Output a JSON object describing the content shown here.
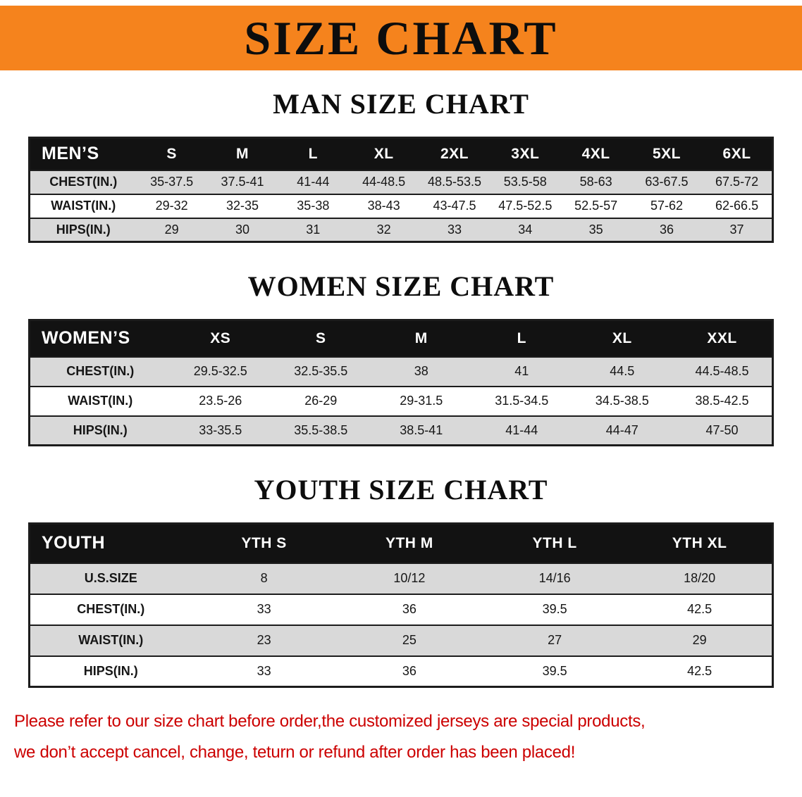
{
  "colors": {
    "banner_bg": "#f5831d",
    "table_header_bg": "#121212",
    "table_header_text": "#ffffff",
    "row_shade": "#d9d9d9",
    "row_plain": "#ffffff",
    "border": "#1c1c1c",
    "heading_text": "#0d0d0d",
    "notice_text": "#cc0000"
  },
  "banner": {
    "title": "SIZE CHART"
  },
  "sections": [
    {
      "id": "men",
      "heading": "MAN SIZE CHART",
      "table": {
        "header": [
          "MEN’S",
          "S",
          "M",
          "L",
          "XL",
          "2XL",
          "3XL",
          "4XL",
          "5XL",
          "6XL"
        ],
        "rows": [
          {
            "label": "CHEST(IN.)",
            "values": [
              "35-37.5",
              "37.5-41",
              "41-44",
              "44-48.5",
              "48.5-53.5",
              "53.5-58",
              "58-63",
              "63-67.5",
              "67.5-72"
            ]
          },
          {
            "label": "WAIST(IN.)",
            "values": [
              "29-32",
              "32-35",
              "35-38",
              "38-43",
              "43-47.5",
              "47.5-52.5",
              "52.5-57",
              "57-62",
              "62-66.5"
            ]
          },
          {
            "label": "HIPS(IN.)",
            "values": [
              "29",
              "30",
              "31",
              "32",
              "33",
              "34",
              "35",
              "36",
              "37"
            ]
          }
        ]
      }
    },
    {
      "id": "women",
      "heading": "WOMEN SIZE CHART",
      "table": {
        "header": [
          "WOMEN’S",
          "XS",
          "S",
          "M",
          "L",
          "XL",
          "XXL"
        ],
        "rows": [
          {
            "label": "CHEST(IN.)",
            "values": [
              "29.5-32.5",
              "32.5-35.5",
              "38",
              "41",
              "44.5",
              "44.5-48.5"
            ]
          },
          {
            "label": "WAIST(IN.)",
            "values": [
              "23.5-26",
              "26-29",
              "29-31.5",
              "31.5-34.5",
              "34.5-38.5",
              "38.5-42.5"
            ]
          },
          {
            "label": "HIPS(IN.)",
            "values": [
              "33-35.5",
              "35.5-38.5",
              "38.5-41",
              "41-44",
              "44-47",
              "47-50"
            ]
          }
        ]
      }
    },
    {
      "id": "youth",
      "heading": "YOUTH SIZE CHART",
      "table": {
        "header": [
          "YOUTH",
          "YTH S",
          "YTH M",
          "YTH L",
          "YTH XL"
        ],
        "rows": [
          {
            "label": "U.S.SIZE",
            "values": [
              "8",
              "10/12",
              "14/16",
              "18/20"
            ]
          },
          {
            "label": "CHEST(IN.)",
            "values": [
              "33",
              "36",
              "39.5",
              "42.5"
            ]
          },
          {
            "label": "WAIST(IN.)",
            "values": [
              "23",
              "25",
              "27",
              "29"
            ]
          },
          {
            "label": "HIPS(IN.)",
            "values": [
              "33",
              "36",
              "39.5",
              "42.5"
            ]
          }
        ]
      }
    }
  ],
  "notice": {
    "lines": [
      "Please refer to our size chart before order,the customized jerseys are special products,",
      "we don’t accept cancel, change, teturn or refund after order has been placed!"
    ]
  }
}
